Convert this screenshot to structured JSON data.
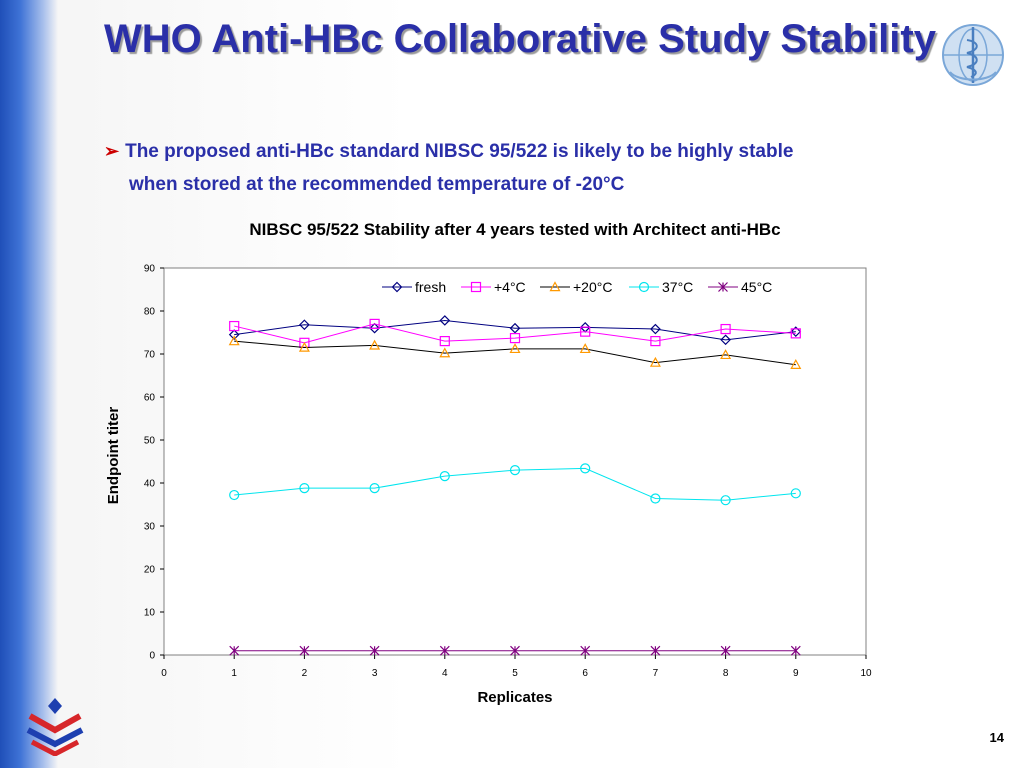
{
  "slide": {
    "title": "WHO Anti-HBc Collaborative Study Stability",
    "bullet_line1": "The proposed anti-HBc standard NIBSC 95/522 is likely to be highly stable",
    "bullet_line2": "when stored at the recommended temperature of -20°C",
    "page_number": "14"
  },
  "colors": {
    "title": "#2a2fa8",
    "bullet_text": "#2a2fa8",
    "bullet_arrow": "#cc0000",
    "side_band": "#2b5dc8"
  },
  "chart_data": {
    "type": "line",
    "title": "NIBSC 95/522 Stability after 4 years tested with Architect anti-HBc",
    "xlabel": "Replicates",
    "ylabel": "Endpoint titer",
    "xlim": [
      0,
      10
    ],
    "ylim": [
      0,
      90
    ],
    "xticks": [
      0,
      1,
      2,
      3,
      4,
      5,
      6,
      7,
      8,
      9,
      10
    ],
    "yticks": [
      0,
      10,
      20,
      30,
      40,
      50,
      60,
      70,
      80,
      90
    ],
    "grid": false,
    "legend_position": "top-right",
    "x": [
      1,
      2,
      3,
      4,
      5,
      6,
      7,
      8,
      9
    ],
    "series": [
      {
        "name": "fresh",
        "marker": "diamond",
        "line_color": "#000080",
        "marker_color": "#000080",
        "values": [
          74.5,
          76.8,
          76.0,
          77.8,
          76.0,
          76.2,
          75.8,
          73.3,
          75.2
        ]
      },
      {
        "name": "+4°C",
        "marker": "square",
        "line_color": "#ff00ff",
        "marker_color": "#ff00ff",
        "values": [
          76.5,
          72.6,
          77.0,
          73.0,
          73.7,
          75.2,
          73.0,
          75.8,
          74.8
        ]
      },
      {
        "name": "+20°C",
        "marker": "triangle",
        "line_color": "#000000",
        "marker_color": "#ff9900",
        "values": [
          73.0,
          71.5,
          72.0,
          70.2,
          71.2,
          71.2,
          68.0,
          69.8,
          67.5
        ]
      },
      {
        "name": "37°C",
        "marker": "circle",
        "line_color": "#00e5ee",
        "marker_color": "#00e5ee",
        "values": [
          37.2,
          38.8,
          38.8,
          41.6,
          43.0,
          43.4,
          36.4,
          36.0,
          37.6
        ]
      },
      {
        "name": "45°C",
        "marker": "asterisk",
        "line_color": "#800080",
        "marker_color": "#800080",
        "values": [
          1,
          1,
          1,
          1,
          1,
          1,
          1,
          1,
          1
        ]
      }
    ]
  }
}
